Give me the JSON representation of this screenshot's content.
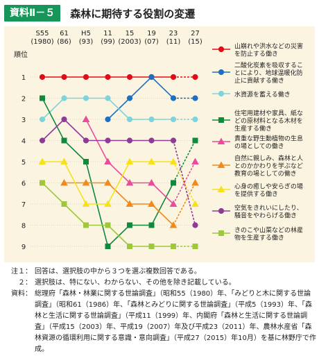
{
  "header": {
    "badge": "資料Ⅱ－５",
    "title": "森林に期待する役割の変遷"
  },
  "chart_data": {
    "type": "line",
    "y_axis_title": "順位",
    "x_labels": [
      [
        "S55",
        "(1980)"
      ],
      [
        "61",
        "(86)"
      ],
      [
        "H5",
        "(93)"
      ],
      [
        "11",
        "(99)"
      ],
      [
        "15",
        "(2003)"
      ],
      [
        "19",
        "(07)"
      ],
      [
        "23",
        "(11)"
      ],
      [
        "27",
        "(15)"
      ]
    ],
    "y_ticks": [
      1,
      2,
      3,
      4,
      5,
      6,
      7,
      8,
      9
    ],
    "ylim": [
      1,
      9
    ],
    "note": "Ranks by survey year; missing years mean the option was not offered. Segment from 23(11) to 27(15) drawn dashed.",
    "series": [
      {
        "name": "山崩れや洪水などの災害を防止する働き",
        "color": "#e30b18",
        "marker": "circle",
        "values": [
          1,
          1,
          1,
          1,
          1,
          1,
          1,
          1
        ]
      },
      {
        "name": "二酸化炭素を吸収することにより、地球温暖化防止に貢献する働き",
        "color": "#1f6fbf",
        "marker": "circle",
        "values": [
          null,
          null,
          null,
          3,
          2,
          1,
          2,
          2
        ]
      },
      {
        "name": "水資源を蓄える働き",
        "color": "#7fd3da",
        "marker": "circle",
        "values": [
          3,
          2,
          2,
          2,
          3,
          3,
          3,
          3
        ]
      },
      {
        "name": "住宅用建材や家具、紙などの原材料となる木材を生産する働き",
        "color": "#0f8a3c",
        "marker": "square",
        "values": [
          2,
          4,
          5,
          9,
          8,
          8,
          6,
          4
        ]
      },
      {
        "name": "貴重な野生動植物の生息の場としての働き",
        "color": "#ea4b9a",
        "marker": "triangle",
        "values": [
          null,
          null,
          3,
          5,
          6,
          6,
          7,
          5
        ]
      },
      {
        "name": "自然に親しみ、森林と人とのかかわりを学ぶなど教育の場としての働き",
        "color": "#f08a1c",
        "marker": "triangle",
        "values": [
          null,
          6,
          6,
          6,
          7,
          7,
          8,
          6
        ]
      },
      {
        "name": "心身の癒しや安らぎの場を提供する働き",
        "color": "#f6e11a",
        "marker": "triangle",
        "values": [
          5,
          5,
          7,
          7,
          5,
          5,
          5,
          7
        ]
      },
      {
        "name": "空気をきれいにしたり、騒音をやわらげる働き",
        "color": "#8e3a96",
        "marker": "circle",
        "values": [
          4,
          3,
          4,
          4,
          4,
          4,
          4,
          8
        ]
      },
      {
        "name": "きのこや山菜などの林産物を生産する働き",
        "color": "#9cc83a",
        "marker": "square",
        "values": [
          6,
          7,
          8,
          8,
          9,
          9,
          9,
          9
        ]
      }
    ]
  },
  "notes": [
    {
      "k": "注１：",
      "v": "回答は、選択肢の中から３つを選ぶ複数回答である。"
    },
    {
      "k": "２：",
      "v": "選択肢は、特にない、わからない、その他を除き記載している。"
    },
    {
      "k": "資料：",
      "v": "総理府「森林・林業に関する世論調査」（昭和55（1980）年、「みどりと木に関する世論調査」（昭和61（1986）年、「森林とみどりに関する世論調査」（平成5（1993）年、「森林と生活に関する世論調査」（平成11（1999）年、内閣府「森林と生活に関する世論調査」（平成15（2003）年、平成19（2007）年及び平成23（2011）年、農林水産省「森林資源の循環利用に関する意識・意向調査」（平成27（2015）年10月）を基に林野庁で作成。"
    }
  ]
}
